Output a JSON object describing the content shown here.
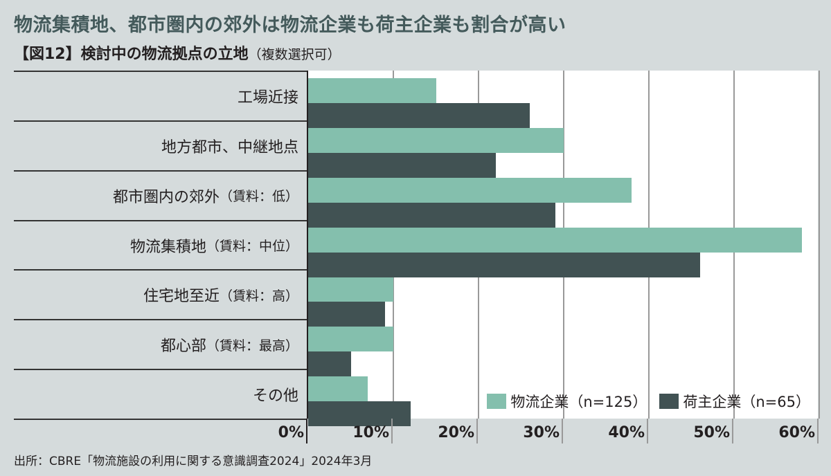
{
  "header": {
    "title": "物流集積地、都市圏内の郊外は物流企業も荷主企業も割合が高い",
    "subtitle": "【図12】検討中の物流拠点の立地",
    "subtitle_note": "（複数選択可）"
  },
  "colors": {
    "logistics": "#84bfad",
    "shipper": "#415253",
    "background": "#d5dbdc",
    "title": "#445a5b"
  },
  "rows": [
    {
      "label": "工場近接",
      "sub": ""
    },
    {
      "label": "地方都市、中継地点",
      "sub": ""
    },
    {
      "label": "都市圏内の郊外",
      "sub": "（賃料：低）"
    },
    {
      "label": "物流集積地",
      "sub": "（賃料：中位）"
    },
    {
      "label": "住宅地至近",
      "sub": "（賃料：高）"
    },
    {
      "label": "都心部",
      "sub": "（賃料：最高）"
    },
    {
      "label": "その他",
      "sub": ""
    }
  ],
  "ticks": [
    "0%",
    "10%",
    "20%",
    "30%",
    "40%",
    "50%",
    "60%"
  ],
  "legend": {
    "logistics": "物流企業（n=125）",
    "shipper": "荷主企業（n=65）"
  },
  "source": "出所：CBRE「物流施設の利用に関する意識調査2024」2024年3月",
  "chart_data": {
    "type": "bar",
    "orientation": "horizontal",
    "title": "物流集積地、都市圏内の郊外は物流企業も荷主企業も割合が高い",
    "subtitle": "【図12】検討中の物流拠点の立地（複数選択可）",
    "categories": [
      "工場近接",
      "地方都市、中継地点",
      "都市圏内の郊外（賃料：低）",
      "物流集積地（賃料：中位）",
      "住宅地至近（賃料：高）",
      "都心部（賃料：最高）",
      "その他"
    ],
    "series": [
      {
        "name": "物流企業（n=125）",
        "color": "#84bfad",
        "values": [
          15,
          30,
          38,
          58,
          10,
          10,
          7
        ]
      },
      {
        "name": "荷主企業（n=65）",
        "color": "#415253",
        "values": [
          26,
          22,
          29,
          46,
          9,
          5,
          12
        ]
      }
    ],
    "xlabel": "",
    "ylabel": "",
    "xlim": [
      0,
      60
    ],
    "tick_labels": [
      "0%",
      "10%",
      "20%",
      "30%",
      "40%",
      "50%",
      "60%"
    ],
    "unit": "%",
    "grid": true,
    "legend_position": "bottom-right inside plot",
    "source": "出所：CBRE「物流施設の利用に関する意識調査2024」2024年3月"
  }
}
